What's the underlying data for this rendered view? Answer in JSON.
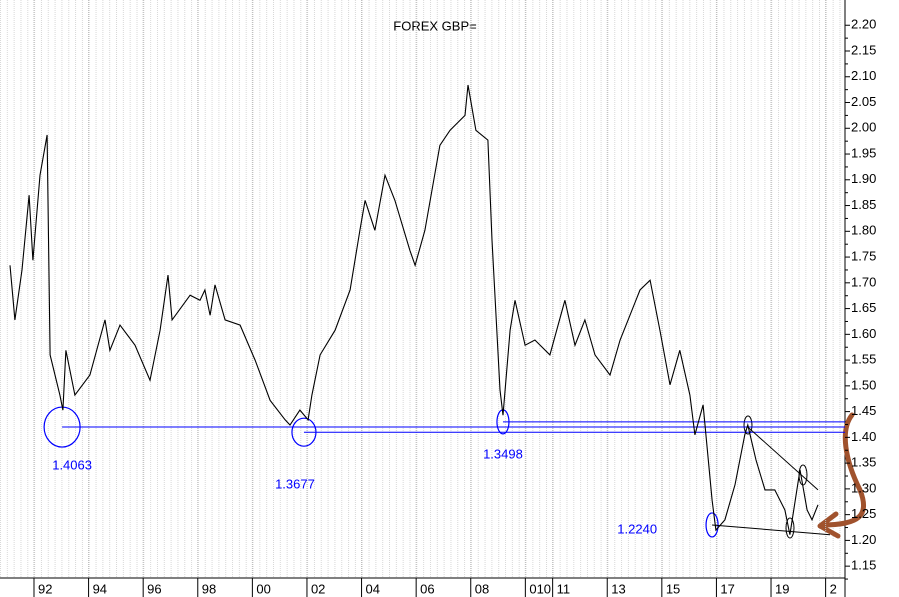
{
  "chart_data": {
    "type": "line",
    "title": "FOREX GBP=",
    "xlim": [
      1990.755,
      2021.71
    ],
    "ylim": [
      1.127,
      2.249
    ],
    "xticks": [
      {
        "value": 1992,
        "label": "92"
      },
      {
        "value": 1994,
        "label": "94"
      },
      {
        "value": 1996,
        "label": "96"
      },
      {
        "value": 1998,
        "label": "98"
      },
      {
        "value": 2000,
        "label": "00"
      },
      {
        "value": 2002,
        "label": "02"
      },
      {
        "value": 2004,
        "label": "04"
      },
      {
        "value": 2006,
        "label": "06"
      },
      {
        "value": 2008,
        "label": "08"
      },
      {
        "value": 2010,
        "label": "010"
      },
      {
        "value": 2011,
        "label": "11"
      },
      {
        "value": 2013,
        "label": "13"
      },
      {
        "value": 2015,
        "label": "15"
      },
      {
        "value": 2017,
        "label": "17"
      },
      {
        "value": 2019,
        "label": "19"
      },
      {
        "value": 2021,
        "label": "2"
      }
    ],
    "yticks": [
      {
        "value": 2.2,
        "label": "2.20"
      },
      {
        "value": 2.15,
        "label": "2.15"
      },
      {
        "value": 2.1,
        "label": "2.10"
      },
      {
        "value": 2.05,
        "label": "2.05"
      },
      {
        "value": 2.0,
        "label": "2.00"
      },
      {
        "value": 1.95,
        "label": "1.95"
      },
      {
        "value": 1.9,
        "label": "1.90"
      },
      {
        "value": 1.85,
        "label": "1.85"
      },
      {
        "value": 1.8,
        "label": "1.80"
      },
      {
        "value": 1.75,
        "label": "1.75"
      },
      {
        "value": 1.7,
        "label": "1.70"
      },
      {
        "value": 1.65,
        "label": "1.65"
      },
      {
        "value": 1.6,
        "label": "1.60"
      },
      {
        "value": 1.55,
        "label": "1.55"
      },
      {
        "value": 1.5,
        "label": "1.50"
      },
      {
        "value": 1.45,
        "label": "1.45"
      },
      {
        "value": 1.4,
        "label": "1.40"
      },
      {
        "value": 1.35,
        "label": "1.35"
      },
      {
        "value": 1.3,
        "label": "1.30"
      },
      {
        "value": 1.25,
        "label": "1.25"
      },
      {
        "value": 1.2,
        "label": "1.20"
      },
      {
        "value": 1.15,
        "label": "1.15"
      }
    ],
    "grid": true,
    "series": [
      {
        "name": "GBP=",
        "color": "#000000",
        "x": [
          1991.12,
          1991.3,
          1991.56,
          1991.82,
          1991.96,
          1992.22,
          1992.48,
          1992.59,
          1992.95,
          1993.06,
          1993.17,
          1993.5,
          1994.05,
          1994.6,
          1994.78,
          1995.15,
          1995.7,
          1996.25,
          1996.62,
          1996.91,
          1997.06,
          1997.72,
          1998.08,
          1998.26,
          1998.45,
          1998.63,
          1999.0,
          1999.55,
          2000.1,
          2000.65,
          2001.2,
          2001.38,
          2001.74,
          2002.04,
          2002.18,
          2002.48,
          2003.03,
          2003.58,
          2003.94,
          2004.13,
          2004.49,
          2004.86,
          2005.22,
          2005.77,
          2005.96,
          2006.32,
          2006.87,
          2007.24,
          2007.79,
          2007.9,
          2008.19,
          2008.63,
          2008.78,
          2009.07,
          2009.18,
          2009.44,
          2009.62,
          2009.99,
          2010.35,
          2010.9,
          2011.45,
          2011.82,
          2012.18,
          2012.55,
          2013.1,
          2013.47,
          2014.2,
          2014.57,
          2014.93,
          2015.3,
          2015.66,
          2016.03,
          2016.21,
          2016.51,
          2016.84,
          2016.98,
          2017.31,
          2017.68,
          2018.04,
          2018.15,
          2018.45,
          2018.78,
          2019.14,
          2019.51,
          2019.69,
          2020.06,
          2020.32,
          2020.5,
          2020.72
        ],
        "values": [
          1.734,
          1.628,
          1.725,
          1.87,
          1.744,
          1.909,
          1.987,
          1.56,
          1.482,
          1.453,
          1.569,
          1.482,
          1.521,
          1.628,
          1.569,
          1.618,
          1.579,
          1.511,
          1.608,
          1.715,
          1.628,
          1.676,
          1.666,
          1.686,
          1.637,
          1.696,
          1.628,
          1.618,
          1.55,
          1.472,
          1.434,
          1.424,
          1.453,
          1.434,
          1.482,
          1.56,
          1.608,
          1.686,
          1.802,
          1.86,
          1.802,
          1.909,
          1.86,
          1.763,
          1.734,
          1.802,
          1.967,
          1.996,
          2.025,
          2.084,
          1.996,
          1.977,
          1.783,
          1.492,
          1.443,
          1.608,
          1.666,
          1.579,
          1.589,
          1.56,
          1.666,
          1.579,
          1.628,
          1.56,
          1.521,
          1.589,
          1.686,
          1.705,
          1.608,
          1.502,
          1.569,
          1.482,
          1.405,
          1.463,
          1.278,
          1.22,
          1.24,
          1.308,
          1.405,
          1.424,
          1.356,
          1.298,
          1.298,
          1.259,
          1.211,
          1.337,
          1.259,
          1.24,
          1.269
        ]
      }
    ],
    "annotations": [
      {
        "label": "1.4063",
        "x": 1993.03,
        "y": 1.42,
        "color": "#0000ff"
      },
      {
        "label": "1.3677",
        "x": 2001.89,
        "y": 1.41,
        "color": "#0000ff"
      },
      {
        "label": "1.3498",
        "x": 2009.18,
        "y": 1.43,
        "color": "#0000ff"
      },
      {
        "label": "1.2240",
        "x": 2016.84,
        "y": 1.23,
        "color": "#0000ff"
      }
    ],
    "trendlines": [
      {
        "x": [
          2018.15,
          2020.72
        ],
        "y": [
          1.42,
          1.298
        ]
      },
      {
        "x": [
          2016.84,
          2021.16
        ],
        "y": [
          1.23,
          1.211
        ]
      }
    ]
  }
}
